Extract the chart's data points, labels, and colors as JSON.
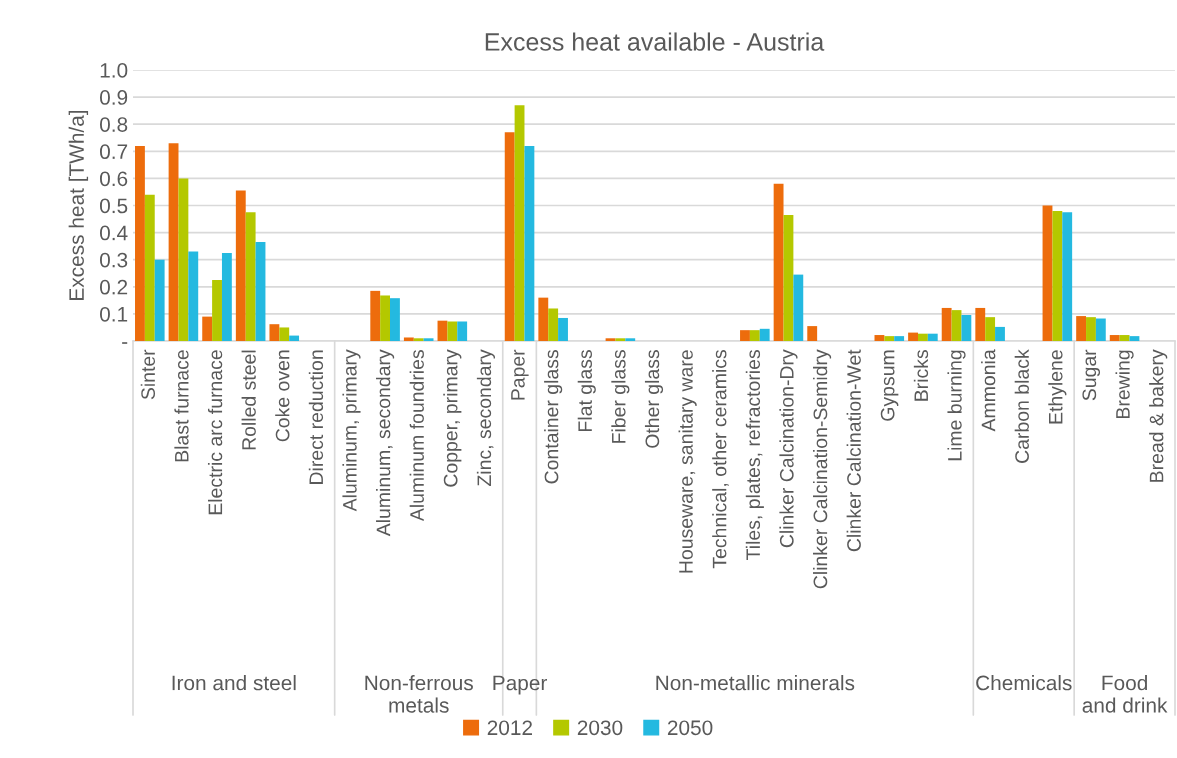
{
  "chart_data": {
    "type": "bar",
    "title": "Excess heat available - Austria",
    "ylabel": "Excess heat [TWh/a]",
    "categories": [
      "Sinter",
      "Blast furnace",
      "Electric arc furnace",
      "Rolled steel",
      "Coke oven",
      "Direct reduction",
      "Aluminum, primary",
      "Aluminum, secondary",
      "Aluminum foundries",
      "Copper, primary",
      "Zinc, secondary",
      "Paper",
      "Container glass",
      "Flat glass",
      "Fiber glass",
      "Other glass",
      "Houseware, sanitary ware",
      "Technical, other ceramics",
      "Tiles, plates, refractories",
      "Clinker Calcination-Dry",
      "Clinker Calcination-Semidry",
      "Clinker Calcination-Wet",
      "Gypsum",
      "Bricks",
      "Lime burning",
      "Ammonia",
      "Carbon black",
      "Ethylene",
      "Sugar",
      "Brewing",
      "Bread & bakery"
    ],
    "series": [
      {
        "name": "2012",
        "color": "#ed6c0c",
        "values": [
          0.72,
          0.73,
          0.09,
          0.555,
          0.062,
          0,
          0,
          0.185,
          0.013,
          0.075,
          0,
          0.77,
          0.16,
          0,
          0.01,
          0,
          0,
          0,
          0.04,
          0.58,
          0.055,
          0,
          0.022,
          0.031,
          0.122,
          0.122,
          0,
          0.5,
          0.092,
          0.022,
          0
        ]
      },
      {
        "name": "2030",
        "color": "#b4c800",
        "values": [
          0.54,
          0.6,
          0.225,
          0.475,
          0.05,
          0,
          0,
          0.168,
          0.01,
          0.072,
          0,
          0.87,
          0.12,
          0,
          0.01,
          0,
          0,
          0,
          0.04,
          0.465,
          0,
          0,
          0.018,
          0.027,
          0.114,
          0.088,
          0,
          0.48,
          0.088,
          0.022,
          0
        ]
      },
      {
        "name": "2050",
        "color": "#24b9e0",
        "values": [
          0.3,
          0.33,
          0.325,
          0.365,
          0.02,
          0,
          0,
          0.158,
          0.01,
          0.072,
          0,
          0.72,
          0.085,
          0,
          0.01,
          0,
          0,
          0,
          0.045,
          0.245,
          0,
          0,
          0.018,
          0.027,
          0.096,
          0.052,
          0,
          0.475,
          0.083,
          0.018,
          0
        ]
      }
    ],
    "annotations": [
      "Iron and steel",
      "Non-ferrous\nmetals",
      "Paper",
      "Non-metallic minerals",
      "Chemicals",
      "Food\nand drink"
    ],
    "ylim": [
      0,
      1.0
    ],
    "yticks": [
      {
        "value": 0,
        "label": "-"
      },
      0.1,
      0.2,
      0.3,
      0.4,
      0.5,
      0.6,
      0.7,
      0.8,
      0.9,
      {
        "value": 1.0,
        "label": "1.0"
      }
    ],
    "grid": "y",
    "legend": "bottom"
  }
}
